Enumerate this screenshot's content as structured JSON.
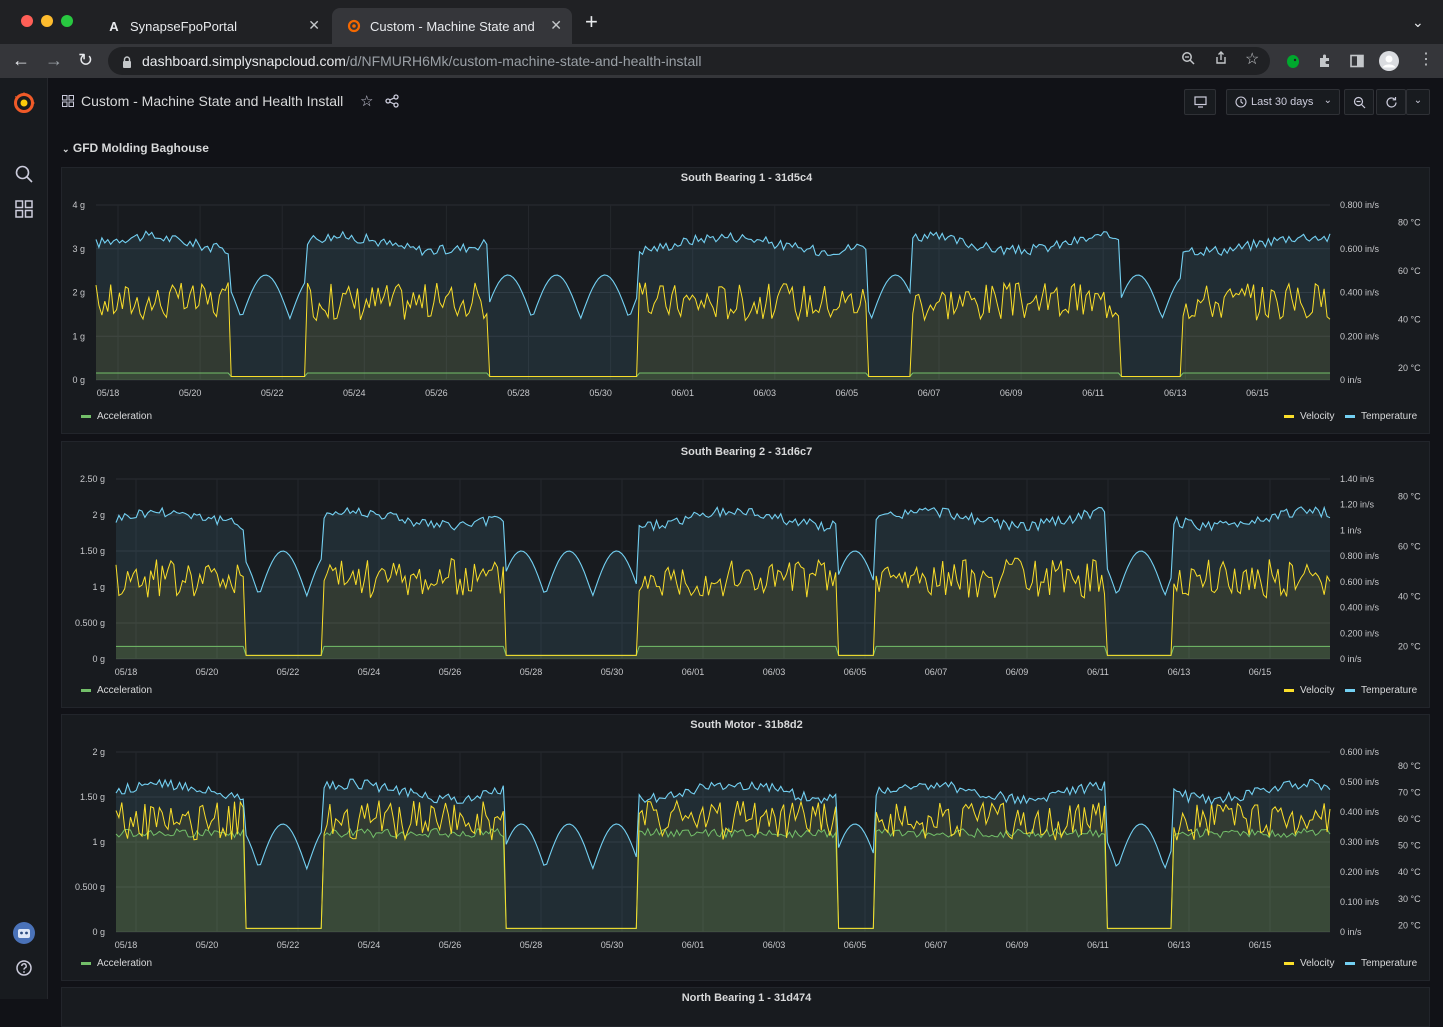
{
  "browser": {
    "tabs": [
      {
        "title": "SynapseFpoPortal",
        "icon": "a-logo-icon",
        "active": false
      },
      {
        "title": "Custom - Machine State and Health Install",
        "icon": "grafana-icon",
        "active": true
      }
    ],
    "url_host": "dashboard.simplysnapcloud.com",
    "url_path": "/d/NFMURH6Mk/custom-machine-state-and-health-install"
  },
  "dashboard": {
    "title": "Custom - Machine State and Health Install",
    "time_range": "Last 30 days",
    "row_title": "GFD Molding Baghouse",
    "next_panel_title_partial": "North Bearing 1 - 31d474"
  },
  "legend": {
    "acceleration": "Acceleration",
    "velocity": "Velocity",
    "temperature": "Temperature"
  },
  "colors": {
    "acceleration": "#73bf69",
    "velocity": "#fade2a",
    "temperature": "#73d0f2",
    "background": "#111217",
    "panel": "#181b1f"
  },
  "x_ticks": [
    "05/18",
    "05/20",
    "05/22",
    "05/24",
    "05/26",
    "05/28",
    "05/30",
    "06/01",
    "06/03",
    "06/05",
    "06/07",
    "06/09",
    "06/11",
    "06/13",
    "06/15"
  ],
  "panels": [
    {
      "title": "South Bearing 1 - 31d5c4",
      "y_left": [
        "0 g",
        "1 g",
        "2 g",
        "3 g",
        "4 g"
      ],
      "y_vel": [
        "0 in/s",
        "0.200 in/s",
        "0.400 in/s",
        "0.600 in/s",
        "0.800 in/s"
      ],
      "y_temp": [
        "20 °C",
        "40 °C",
        "60 °C",
        "80 °C"
      ]
    },
    {
      "title": "South Bearing 2 - 31d6c7",
      "y_left": [
        "0 g",
        "0.500 g",
        "1 g",
        "1.50 g",
        "2 g",
        "2.50 g"
      ],
      "y_vel": [
        "0 in/s",
        "0.200 in/s",
        "0.400 in/s",
        "0.600 in/s",
        "0.800 in/s",
        "1 in/s",
        "1.20 in/s",
        "1.40 in/s"
      ],
      "y_temp": [
        "20 °C",
        "40 °C",
        "60 °C",
        "80 °C"
      ]
    },
    {
      "title": "South Motor - 31b8d2",
      "y_left": [
        "0 g",
        "0.500 g",
        "1 g",
        "1.50 g",
        "2 g"
      ],
      "y_vel": [
        "0 in/s",
        "0.100 in/s",
        "0.200 in/s",
        "0.300 in/s",
        "0.400 in/s",
        "0.500 in/s",
        "0.600 in/s"
      ],
      "y_temp": [
        "20 °C",
        "30 °C",
        "40 °C",
        "50 °C",
        "60 °C",
        "70 °C",
        "80 °C"
      ]
    }
  ]
}
